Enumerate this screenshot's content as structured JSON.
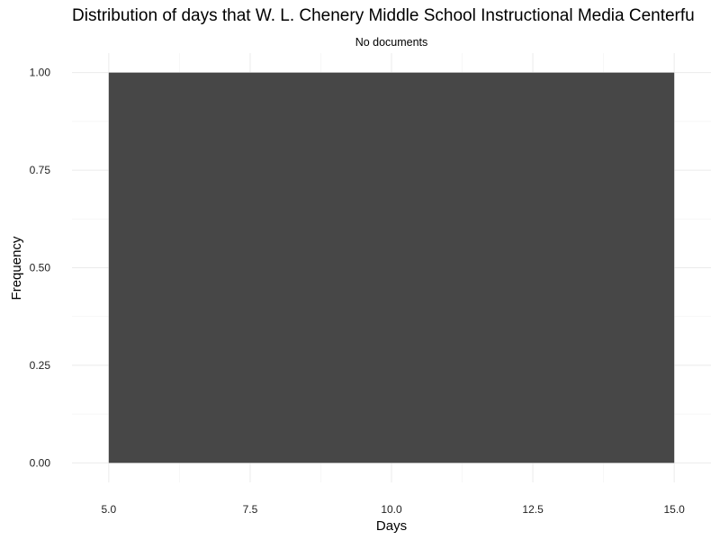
{
  "chart_data": {
    "type": "bar",
    "title": "Distribution of days that W. L. Chenery Middle School Instructional Media Centerfu",
    "subtitle": "No documents",
    "xlabel": "Days",
    "ylabel": "Frequency",
    "xlim": [
      4.35,
      15.65
    ],
    "ylim": [
      -0.05,
      1.05
    ],
    "x_ticks": [
      "5.0",
      "7.5",
      "10.0",
      "12.5",
      "15.0"
    ],
    "x_tick_values": [
      5,
      7.5,
      10,
      12.5,
      15
    ],
    "y_ticks": [
      "0.00",
      "0.25",
      "0.50",
      "0.75",
      "1.00"
    ],
    "y_tick_values": [
      0,
      0.25,
      0.5,
      0.75,
      1
    ],
    "bins": [
      {
        "x_start": 5,
        "x_end": 15,
        "value": 1
      }
    ],
    "bar_color": "#474747",
    "grid": true,
    "legend": "none"
  }
}
